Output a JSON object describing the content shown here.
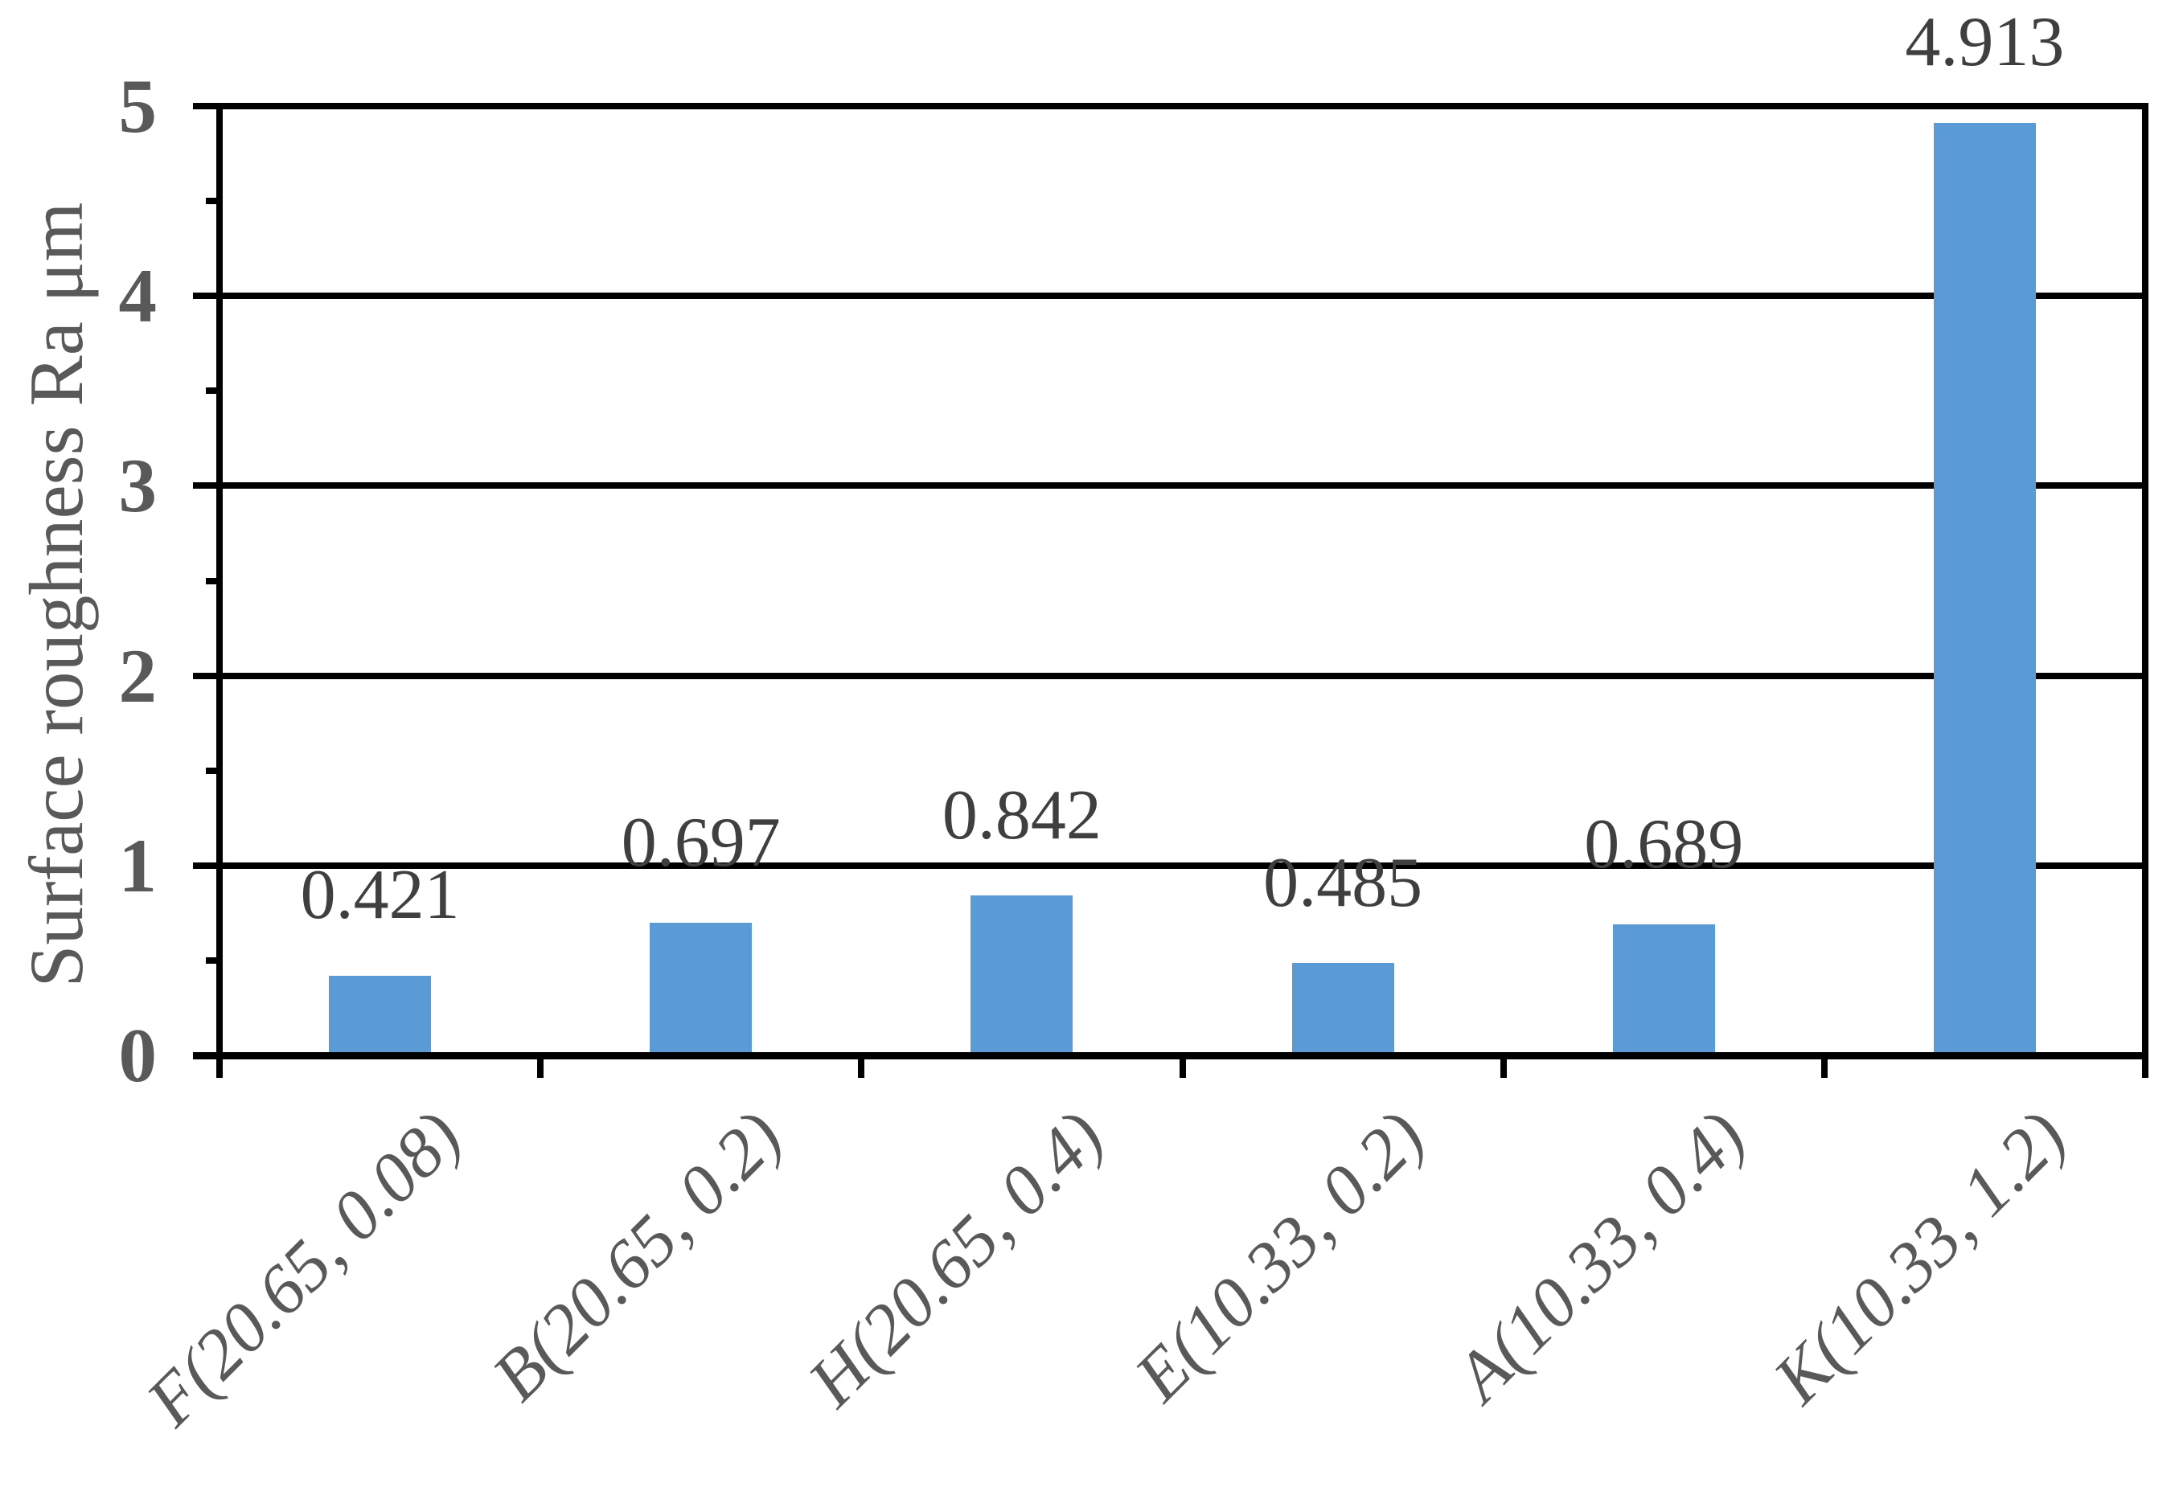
{
  "chart_data": {
    "type": "bar",
    "categories": [
      "F(20.65, 0.08)",
      "B(20.65, 0.2)",
      "H(20.65, 0.4)",
      "E(10.33, 0.2)",
      "A(10.33, 0.4)",
      "K(10.33, 1.2)"
    ],
    "values": [
      0.421,
      0.697,
      0.842,
      0.485,
      0.689,
      4.913
    ],
    "value_labels": [
      "0.421",
      "0.697",
      "0.842",
      "0.485",
      "0.689",
      "4.913"
    ],
    "title": "",
    "xlabel": "",
    "ylabel": "Surface roughness Ra μm",
    "ylim": [
      0,
      5
    ],
    "ytick_labels": [
      "0",
      "1",
      "2",
      "3",
      "4",
      "5"
    ],
    "ytick_step": 1,
    "minor_tick_step": 0.5,
    "grid": "horizontal-major-on",
    "legend": "none",
    "colors": {
      "bar": "#5B9BD5",
      "grid_and_axis": "#000000",
      "value_label": "#3F3F3F",
      "ytick_label": "#595959",
      "category_label": "#595959",
      "axis_title": "#595959",
      "background": "#FFFFFF"
    }
  }
}
